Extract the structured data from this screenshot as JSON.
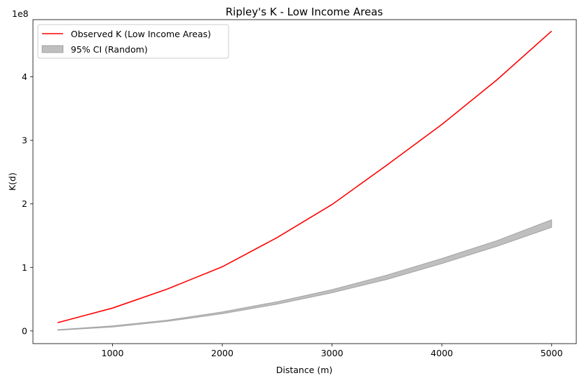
{
  "chart_data": {
    "type": "line",
    "title": "Ripley's K - Low Income Areas",
    "xlabel": "Distance (m)",
    "ylabel": "K(d)",
    "y_offset_label": "1e8",
    "xlim": [
      275,
      5225
    ],
    "ylim": [
      -0.2,
      4.9
    ],
    "y_unit_multiplier": 100000000,
    "x_ticks": [
      1000,
      2000,
      3000,
      4000,
      5000
    ],
    "x_tick_labels": [
      "1000",
      "2000",
      "3000",
      "4000",
      "5000"
    ],
    "y_ticks": [
      0,
      1,
      2,
      3,
      4
    ],
    "y_tick_labels": [
      "0",
      "1",
      "2",
      "3",
      "4"
    ],
    "grid": false,
    "legend_position": "top-left",
    "x": [
      500,
      1000,
      1500,
      2000,
      2500,
      3000,
      3500,
      4000,
      4500,
      5000
    ],
    "series": [
      {
        "name": "Observed K (Low Income Areas)",
        "kind": "line",
        "color": "#ff0000",
        "values": [
          0.13,
          0.36,
          0.66,
          1.01,
          1.47,
          1.99,
          2.61,
          3.25,
          3.95,
          4.72
        ]
      },
      {
        "name": "95% CI (Random)",
        "kind": "band",
        "color": "#808080",
        "lower": [
          0.01,
          0.06,
          0.15,
          0.27,
          0.42,
          0.6,
          0.81,
          1.06,
          1.33,
          1.63
        ],
        "upper": [
          0.02,
          0.08,
          0.17,
          0.3,
          0.46,
          0.65,
          0.88,
          1.14,
          1.42,
          1.75
        ]
      }
    ]
  }
}
